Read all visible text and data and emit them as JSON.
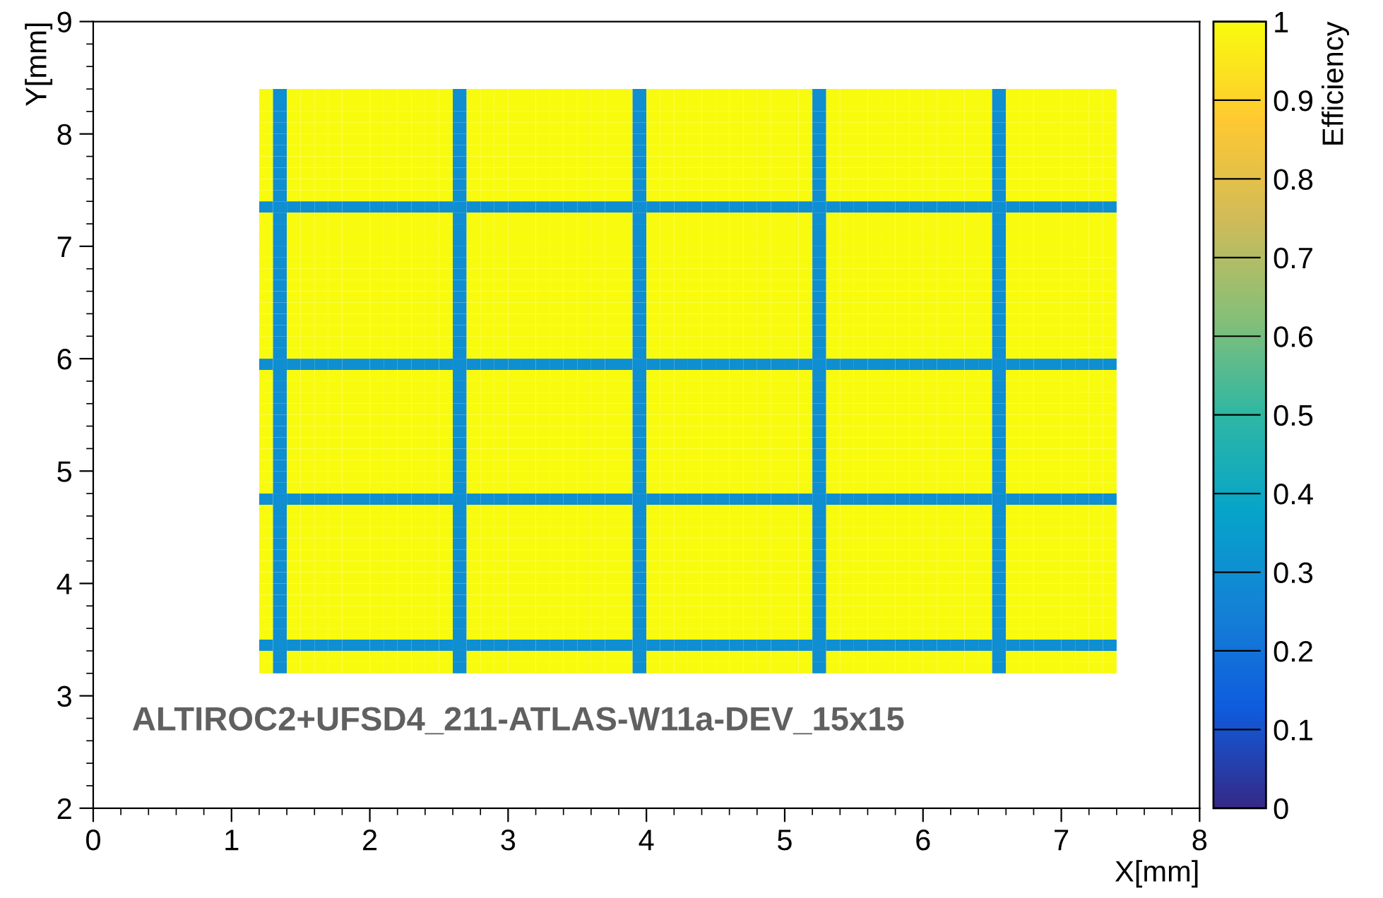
{
  "chart_data": {
    "type": "heatmap",
    "x": [
      1.25,
      1.35,
      1.45,
      1.55,
      1.65,
      1.75,
      1.85,
      1.95,
      2.05,
      2.15,
      2.25,
      2.35,
      2.45,
      2.55,
      2.65,
      2.75,
      2.85,
      2.95,
      3.05,
      3.15,
      3.25,
      3.35,
      3.45,
      3.55,
      3.65,
      3.75,
      3.85,
      3.95,
      4.05,
      4.15,
      4.25,
      4.35,
      4.45,
      4.55,
      4.65,
      4.75,
      4.85,
      4.95,
      5.05,
      5.15,
      5.25,
      5.35,
      5.45,
      5.55,
      5.65,
      5.75,
      5.85,
      5.95,
      6.05,
      6.15,
      6.25,
      6.35,
      6.45,
      6.55,
      6.65,
      6.75,
      6.85,
      6.95,
      7.05,
      7.15,
      7.25,
      7.35
    ],
    "y": [
      8.35,
      8.25,
      8.15,
      8.05,
      7.95,
      7.85,
      7.75,
      7.65,
      7.55,
      7.45,
      7.35,
      7.25,
      7.15,
      7.05,
      6.95,
      6.85,
      6.75,
      6.65,
      6.55,
      6.45,
      6.35,
      6.25,
      6.15,
      6.05,
      5.95,
      5.85,
      5.75,
      5.65,
      5.55,
      5.45,
      5.35,
      5.25,
      5.15,
      5.05,
      4.95,
      4.85,
      4.75,
      4.65,
      4.55,
      4.45,
      4.35,
      4.25,
      4.15,
      4.05,
      3.95,
      3.85,
      3.75,
      3.65,
      3.55,
      3.45,
      3.35,
      3.25
    ],
    "cells": [
      [
        1,
        0.3,
        1,
        1,
        1,
        1,
        1,
        1,
        1,
        1,
        1,
        1,
        1,
        1,
        0.3,
        1,
        1,
        1,
        1,
        1,
        1,
        1,
        1,
        1,
        1,
        1,
        1,
        0.3,
        1,
        1,
        1,
        1,
        1,
        1,
        1,
        1,
        1,
        1,
        1,
        1,
        0.3,
        1,
        1,
        1,
        1,
        1,
        1,
        1,
        1,
        1,
        1,
        1,
        1,
        0.3,
        1,
        1,
        1,
        1,
        1,
        1,
        1,
        1
      ],
      [
        1,
        0.3,
        1,
        1,
        1,
        1,
        1,
        1,
        1,
        1,
        1,
        1,
        1,
        1,
        0.3,
        1,
        1,
        1,
        1,
        1,
        1,
        1,
        1,
        1,
        1,
        1,
        1,
        0.3,
        1,
        1,
        1,
        1,
        1,
        1,
        1,
        1,
        1,
        1,
        1,
        1,
        0.3,
        1,
        1,
        1,
        1,
        1,
        1,
        1,
        1,
        1,
        1,
        1,
        1,
        0.3,
        1,
        1,
        1,
        1,
        1,
        1,
        1,
        1
      ],
      [
        1,
        0.3,
        1,
        1,
        1,
        1,
        1,
        1,
        1,
        1,
        1,
        1,
        1,
        1,
        0.3,
        1,
        1,
        1,
        1,
        1,
        1,
        1,
        1,
        1,
        1,
        1,
        1,
        0.3,
        1,
        1,
        1,
        1,
        1,
        1,
        1,
        1,
        1,
        1,
        1,
        1,
        0.3,
        1,
        1,
        1,
        1,
        1,
        1,
        1,
        1,
        1,
        1,
        1,
        1,
        0.3,
        1,
        1,
        1,
        1,
        1,
        1,
        1,
        1
      ],
      [
        1,
        0.3,
        1,
        1,
        1,
        1,
        1,
        1,
        1,
        1,
        1,
        1,
        1,
        1,
        0.3,
        1,
        1,
        1,
        1,
        1,
        1,
        1,
        1,
        1,
        1,
        1,
        1,
        0.3,
        1,
        1,
        1,
        1,
        1,
        1,
        1,
        1,
        1,
        1,
        1,
        1,
        0.3,
        1,
        1,
        1,
        1,
        1,
        1,
        1,
        1,
        1,
        1,
        1,
        1,
        0.3,
        1,
        1,
        1,
        1,
        1,
        1,
        1,
        1
      ],
      [
        1,
        0.3,
        1,
        1,
        1,
        1,
        1,
        1,
        1,
        1,
        1,
        1,
        1,
        1,
        0.3,
        1,
        1,
        1,
        1,
        1,
        1,
        1,
        1,
        1,
        1,
        1,
        1,
        0.3,
        1,
        1,
        1,
        1,
        1,
        1,
        1,
        1,
        1,
        1,
        1,
        1,
        0.3,
        1,
        1,
        1,
        1,
        1,
        1,
        1,
        1,
        1,
        1,
        1,
        1,
        0.3,
        1,
        1,
        1,
        1,
        1,
        1,
        1,
        1
      ],
      [
        1,
        0.3,
        1,
        1,
        1,
        1,
        1,
        1,
        1,
        1,
        1,
        1,
        1,
        1,
        0.3,
        1,
        1,
        1,
        1,
        1,
        1,
        1,
        1,
        1,
        1,
        1,
        1,
        0.3,
        1,
        1,
        1,
        1,
        1,
        1,
        1,
        1,
        1,
        1,
        1,
        1,
        0.3,
        1,
        1,
        1,
        1,
        1,
        1,
        1,
        1,
        1,
        1,
        1,
        1,
        0.3,
        1,
        1,
        1,
        1,
        1,
        1,
        1,
        1
      ],
      [
        1,
        0.3,
        1,
        1,
        1,
        1,
        1,
        1,
        1,
        1,
        1,
        1,
        1,
        1,
        0.3,
        1,
        1,
        1,
        1,
        1,
        1,
        1,
        1,
        1,
        1,
        1,
        1,
        0.3,
        1,
        1,
        1,
        1,
        1,
        1,
        1,
        1,
        1,
        1,
        1,
        1,
        0.3,
        1,
        1,
        1,
        1,
        1,
        1,
        1,
        1,
        1,
        1,
        1,
        1,
        0.3,
        1,
        1,
        1,
        1,
        1,
        1,
        1,
        1
      ],
      [
        1,
        0.3,
        1,
        1,
        1,
        1,
        1,
        1,
        1,
        1,
        1,
        1,
        1,
        1,
        0.3,
        1,
        1,
        1,
        1,
        1,
        1,
        1,
        1,
        1,
        1,
        1,
        1,
        0.3,
        1,
        1,
        1,
        1,
        1,
        1,
        1,
        1,
        1,
        1,
        1,
        1,
        0.3,
        1,
        1,
        1,
        1,
        1,
        1,
        1,
        1,
        1,
        1,
        1,
        1,
        0.3,
        1,
        1,
        1,
        1,
        1,
        1,
        1,
        1
      ],
      [
        1,
        0.3,
        1,
        1,
        1,
        1,
        1,
        1,
        1,
        1,
        1,
        1,
        1,
        1,
        0.3,
        1,
        1,
        1,
        1,
        1,
        1,
        1,
        1,
        1,
        1,
        1,
        1,
        0.3,
        1,
        1,
        1,
        1,
        1,
        1,
        1,
        1,
        1,
        1,
        1,
        1,
        0.3,
        1,
        1,
        1,
        1,
        1,
        1,
        1,
        1,
        1,
        1,
        1,
        1,
        0.3,
        1,
        1,
        1,
        1,
        1,
        1,
        1,
        1
      ],
      [
        1,
        0.3,
        1,
        1,
        1,
        1,
        1,
        1,
        1,
        1,
        1,
        1,
        1,
        1,
        0.3,
        1,
        1,
        1,
        1,
        1,
        1,
        1,
        1,
        1,
        1,
        1,
        1,
        0.3,
        1,
        1,
        1,
        1,
        1,
        1,
        1,
        1,
        1,
        1,
        1,
        1,
        0.3,
        1,
        1,
        1,
        1,
        1,
        1,
        1,
        1,
        1,
        1,
        1,
        1,
        0.3,
        1,
        1,
        1,
        1,
        1,
        1,
        1,
        1
      ],
      [
        0.3,
        0.3,
        0.3,
        0.3,
        0.3,
        0.3,
        0.3,
        0.3,
        0.3,
        0.3,
        0.3,
        0.3,
        0.3,
        0.3,
        0.3,
        0.3,
        0.3,
        0.3,
        0.3,
        0.3,
        0.3,
        0.3,
        0.3,
        0.3,
        0.3,
        0.3,
        0.3,
        0.3,
        0.3,
        0.3,
        0.3,
        0.3,
        0.3,
        0.3,
        0.3,
        0.3,
        0.3,
        0.3,
        0.3,
        0.3,
        0.3,
        0.3,
        0.3,
        0.3,
        0.3,
        0.3,
        0.3,
        0.3,
        0.3,
        0.3,
        0.3,
        0.3,
        0.3,
        0.3,
        0.3,
        0.3,
        0.3,
        0.3,
        0.3,
        0.3,
        0.3,
        0.3
      ],
      [
        1,
        0.3,
        1,
        1,
        1,
        1,
        1,
        1,
        1,
        1,
        1,
        1,
        1,
        1,
        0.3,
        1,
        1,
        1,
        1,
        1,
        1,
        1,
        1,
        1,
        1,
        1,
        1,
        0.3,
        1,
        1,
        1,
        1,
        1,
        1,
        1,
        1,
        1,
        1,
        1,
        1,
        0.3,
        1,
        1,
        1,
        1,
        1,
        1,
        1,
        1,
        1,
        1,
        1,
        1,
        0.3,
        1,
        1,
        1,
        1,
        1,
        1,
        1,
        1
      ],
      [
        1,
        0.3,
        1,
        1,
        1,
        1,
        1,
        1,
        1,
        1,
        1,
        1,
        1,
        1,
        0.3,
        1,
        1,
        1,
        1,
        1,
        1,
        1,
        1,
        1,
        1,
        1,
        1,
        0.3,
        1,
        1,
        1,
        1,
        1,
        1,
        1,
        1,
        1,
        1,
        1,
        1,
        0.3,
        1,
        1,
        1,
        1,
        1,
        1,
        1,
        1,
        1,
        1,
        1,
        1,
        0.3,
        1,
        1,
        1,
        1,
        1,
        1,
        1,
        1
      ],
      [
        1,
        0.3,
        1,
        1,
        1,
        1,
        1,
        1,
        1,
        1,
        1,
        1,
        1,
        1,
        0.3,
        1,
        1,
        1,
        1,
        1,
        1,
        1,
        1,
        1,
        1,
        1,
        1,
        0.3,
        1,
        1,
        1,
        1,
        1,
        1,
        1,
        1,
        1,
        1,
        1,
        1,
        0.3,
        1,
        1,
        1,
        1,
        1,
        1,
        1,
        1,
        1,
        1,
        1,
        1,
        0.3,
        1,
        1,
        1,
        1,
        1,
        1,
        1,
        1
      ],
      [
        1,
        0.3,
        1,
        1,
        1,
        1,
        1,
        1,
        1,
        1,
        1,
        1,
        1,
        1,
        0.3,
        1,
        1,
        1,
        1,
        1,
        1,
        1,
        1,
        1,
        1,
        1,
        1,
        0.3,
        1,
        1,
        1,
        1,
        1,
        1,
        1,
        1,
        1,
        1,
        1,
        1,
        0.3,
        1,
        1,
        1,
        1,
        1,
        1,
        1,
        1,
        1,
        1,
        1,
        1,
        0.3,
        1,
        1,
        1,
        1,
        1,
        1,
        1,
        1
      ],
      [
        1,
        0.3,
        1,
        1,
        1,
        1,
        1,
        1,
        1,
        1,
        1,
        1,
        1,
        1,
        0.3,
        1,
        1,
        1,
        1,
        1,
        1,
        1,
        1,
        1,
        1,
        1,
        1,
        0.3,
        1,
        1,
        1,
        1,
        1,
        1,
        1,
        1,
        1,
        1,
        1,
        1,
        0.3,
        1,
        1,
        1,
        1,
        1,
        1,
        1,
        1,
        1,
        1,
        1,
        1,
        0.3,
        1,
        1,
        1,
        1,
        1,
        1,
        1,
        1
      ],
      [
        1,
        0.3,
        1,
        1,
        1,
        1,
        1,
        1,
        1,
        1,
        1,
        1,
        1,
        1,
        0.3,
        1,
        1,
        1,
        1,
        1,
        1,
        1,
        1,
        1,
        1,
        1,
        1,
        0.3,
        1,
        1,
        1,
        1,
        1,
        1,
        1,
        1,
        1,
        1,
        1,
        1,
        0.3,
        1,
        1,
        1,
        1,
        1,
        1,
        1,
        1,
        1,
        1,
        1,
        1,
        0.3,
        1,
        1,
        1,
        1,
        1,
        1,
        1,
        1
      ],
      [
        1,
        0.3,
        1,
        1,
        1,
        1,
        1,
        1,
        1,
        1,
        1,
        1,
        1,
        1,
        0.3,
        1,
        1,
        1,
        1,
        1,
        1,
        1,
        1,
        1,
        1,
        1,
        1,
        0.3,
        1,
        1,
        1,
        1,
        1,
        1,
        1,
        1,
        1,
        1,
        1,
        1,
        0.3,
        1,
        1,
        1,
        1,
        1,
        1,
        1,
        1,
        1,
        1,
        1,
        1,
        0.3,
        1,
        1,
        1,
        1,
        1,
        1,
        1,
        1
      ],
      [
        1,
        0.3,
        1,
        1,
        1,
        1,
        1,
        1,
        1,
        1,
        1,
        1,
        1,
        1,
        0.3,
        1,
        1,
        1,
        1,
        1,
        1,
        1,
        1,
        1,
        1,
        1,
        1,
        0.3,
        1,
        1,
        1,
        1,
        1,
        1,
        1,
        1,
        1,
        1,
        1,
        1,
        0.3,
        1,
        1,
        1,
        1,
        1,
        1,
        1,
        1,
        1,
        1,
        1,
        1,
        0.3,
        1,
        1,
        1,
        1,
        1,
        1,
        1,
        1
      ],
      [
        1,
        0.3,
        1,
        1,
        1,
        1,
        1,
        1,
        1,
        1,
        1,
        1,
        1,
        1,
        0.3,
        1,
        1,
        1,
        1,
        1,
        1,
        1,
        1,
        1,
        1,
        1,
        1,
        0.3,
        1,
        1,
        1,
        1,
        1,
        1,
        1,
        1,
        1,
        1,
        1,
        1,
        0.3,
        1,
        1,
        1,
        1,
        1,
        1,
        1,
        1,
        1,
        1,
        1,
        1,
        0.3,
        1,
        1,
        1,
        1,
        1,
        1,
        1,
        1
      ],
      [
        1,
        0.3,
        1,
        1,
        1,
        1,
        1,
        1,
        1,
        1,
        1,
        1,
        1,
        1,
        0.3,
        1,
        1,
        1,
        1,
        1,
        1,
        1,
        1,
        1,
        1,
        1,
        1,
        0.3,
        1,
        1,
        1,
        1,
        1,
        1,
        1,
        1,
        1,
        1,
        1,
        1,
        0.3,
        1,
        1,
        1,
        1,
        1,
        1,
        1,
        1,
        1,
        1,
        1,
        1,
        0.3,
        1,
        1,
        1,
        1,
        1,
        1,
        1,
        1
      ],
      [
        1,
        0.3,
        1,
        1,
        1,
        1,
        1,
        1,
        1,
        1,
        1,
        1,
        1,
        1,
        0.3,
        1,
        1,
        1,
        1,
        1,
        1,
        1,
        1,
        1,
        1,
        1,
        1,
        0.3,
        1,
        1,
        1,
        1,
        1,
        1,
        1,
        1,
        1,
        1,
        1,
        1,
        0.3,
        1,
        1,
        1,
        1,
        1,
        1,
        1,
        1,
        1,
        1,
        1,
        1,
        0.3,
        1,
        1,
        1,
        1,
        1,
        1,
        1,
        1
      ],
      [
        1,
        0.3,
        1,
        1,
        1,
        1,
        1,
        1,
        1,
        1,
        1,
        1,
        1,
        1,
        0.3,
        1,
        1,
        1,
        1,
        1,
        1,
        1,
        1,
        1,
        1,
        1,
        1,
        0.3,
        1,
        1,
        1,
        1,
        1,
        1,
        1,
        1,
        1,
        1,
        1,
        1,
        0.3,
        1,
        1,
        1,
        1,
        1,
        1,
        1,
        1,
        1,
        1,
        1,
        1,
        0.3,
        1,
        1,
        1,
        1,
        1,
        1,
        1,
        1
      ],
      [
        1,
        0.3,
        1,
        1,
        1,
        1,
        1,
        1,
        1,
        1,
        1,
        1,
        1,
        1,
        0.3,
        1,
        1,
        1,
        1,
        1,
        1,
        1,
        1,
        1,
        1,
        1,
        1,
        0.3,
        1,
        1,
        1,
        1,
        1,
        1,
        1,
        1,
        1,
        1,
        1,
        1,
        0.3,
        1,
        1,
        1,
        1,
        1,
        1,
        1,
        1,
        1,
        1,
        1,
        1,
        0.3,
        1,
        1,
        1,
        1,
        1,
        1,
        1,
        1
      ],
      [
        0.3,
        0.3,
        0.3,
        0.3,
        0.3,
        0.3,
        0.3,
        0.3,
        0.3,
        0.3,
        0.3,
        0.3,
        0.3,
        0.3,
        0.3,
        0.3,
        0.3,
        0.3,
        0.3,
        0.3,
        0.3,
        0.3,
        0.3,
        0.3,
        0.3,
        0.3,
        0.3,
        0.3,
        0.3,
        0.3,
        0.3,
        0.3,
        0.3,
        0.3,
        0.3,
        0.3,
        0.3,
        0.3,
        0.3,
        0.3,
        0.3,
        0.3,
        0.3,
        0.3,
        0.3,
        0.3,
        0.3,
        0.3,
        0.3,
        0.3,
        0.3,
        0.3,
        0.3,
        0.3,
        0.3,
        0.3,
        0.3,
        0.3,
        0.3,
        0.3,
        0.3,
        0.3
      ],
      [
        1,
        0.3,
        1,
        1,
        1,
        1,
        1,
        1,
        1,
        1,
        1,
        1,
        1,
        1,
        0.3,
        1,
        1,
        1,
        1,
        1,
        1,
        1,
        1,
        1,
        1,
        1,
        1,
        0.3,
        1,
        1,
        1,
        1,
        1,
        1,
        1,
        1,
        1,
        1,
        1,
        1,
        0.3,
        1,
        1,
        1,
        1,
        1,
        1,
        1,
        1,
        1,
        1,
        1,
        1,
        0.3,
        1,
        1,
        1,
        1,
        1,
        1,
        1,
        1
      ],
      [
        1,
        0.3,
        1,
        1,
        1,
        1,
        1,
        1,
        1,
        1,
        1,
        1,
        1,
        1,
        0.3,
        1,
        1,
        1,
        1,
        1,
        1,
        1,
        1,
        1,
        1,
        1,
        1,
        0.3,
        1,
        1,
        1,
        1,
        1,
        1,
        1,
        1,
        1,
        1,
        1,
        1,
        0.3,
        1,
        1,
        1,
        1,
        1,
        1,
        1,
        1,
        1,
        1,
        1,
        1,
        0.3,
        1,
        1,
        1,
        1,
        1,
        1,
        1,
        1
      ],
      [
        1,
        0.3,
        1,
        1,
        1,
        1,
        1,
        1,
        1,
        1,
        1,
        1,
        1,
        1,
        0.3,
        1,
        1,
        1,
        1,
        1,
        1,
        1,
        1,
        1,
        1,
        1,
        1,
        0.3,
        1,
        1,
        1,
        1,
        1,
        1,
        1,
        1,
        1,
        1,
        1,
        1,
        0.3,
        1,
        1,
        1,
        1,
        1,
        1,
        1,
        1,
        1,
        1,
        1,
        1,
        0.3,
        1,
        1,
        1,
        1,
        1,
        1,
        1,
        1
      ],
      [
        1,
        0.3,
        1,
        1,
        1,
        1,
        1,
        1,
        1,
        1,
        1,
        1,
        1,
        1,
        0.3,
        1,
        1,
        1,
        1,
        1,
        1,
        1,
        1,
        1,
        1,
        1,
        1,
        0.3,
        1,
        1,
        1,
        1,
        1,
        1,
        1,
        1,
        1,
        1,
        1,
        1,
        0.3,
        1,
        1,
        1,
        1,
        1,
        1,
        1,
        1,
        1,
        1,
        1,
        1,
        0.3,
        1,
        1,
        1,
        1,
        1,
        1,
        1,
        1
      ],
      [
        1,
        0.3,
        1,
        1,
        1,
        1,
        1,
        1,
        1,
        1,
        1,
        1,
        1,
        1,
        0.3,
        1,
        1,
        1,
        1,
        1,
        1,
        1,
        1,
        1,
        1,
        1,
        1,
        0.3,
        1,
        1,
        1,
        1,
        1,
        1,
        1,
        1,
        1,
        1,
        1,
        1,
        0.3,
        1,
        1,
        1,
        1,
        1,
        1,
        1,
        1,
        1,
        1,
        1,
        1,
        0.3,
        1,
        1,
        1,
        1,
        1,
        1,
        1,
        1
      ],
      [
        1,
        0.3,
        1,
        1,
        1,
        1,
        1,
        1,
        1,
        1,
        1,
        1,
        1,
        1,
        0.3,
        1,
        1,
        1,
        1,
        1,
        1,
        1,
        1,
        1,
        1,
        1,
        1,
        0.3,
        1,
        1,
        1,
        1,
        1,
        1,
        1,
        1,
        1,
        1,
        1,
        1,
        0.3,
        1,
        1,
        1,
        1,
        1,
        1,
        1,
        1,
        1,
        1,
        1,
        1,
        0.3,
        1,
        1,
        1,
        1,
        1,
        1,
        1,
        1
      ],
      [
        1,
        0.3,
        1,
        1,
        1,
        1,
        1,
        1,
        1,
        1,
        1,
        1,
        1,
        1,
        0.3,
        1,
        1,
        1,
        1,
        1,
        1,
        1,
        1,
        1,
        1,
        1,
        1,
        0.3,
        1,
        1,
        1,
        1,
        1,
        1,
        1,
        1,
        1,
        1,
        1,
        1,
        0.3,
        1,
        1,
        1,
        1,
        1,
        1,
        1,
        1,
        1,
        1,
        1,
        1,
        0.3,
        1,
        1,
        1,
        1,
        1,
        1,
        1,
        1
      ],
      [
        1,
        0.3,
        1,
        1,
        1,
        1,
        1,
        1,
        1,
        1,
        1,
        1,
        1,
        1,
        0.3,
        1,
        1,
        1,
        1,
        1,
        1,
        1,
        1,
        1,
        1,
        1,
        1,
        0.3,
        1,
        1,
        1,
        1,
        1,
        1,
        1,
        1,
        1,
        1,
        1,
        1,
        0.3,
        1,
        1,
        1,
        1,
        1,
        1,
        1,
        1,
        1,
        1,
        1,
        1,
        0.3,
        1,
        1,
        1,
        1,
        1,
        1,
        1,
        1
      ],
      [
        1,
        0.3,
        1,
        1,
        1,
        1,
        1,
        1,
        1,
        1,
        1,
        1,
        1,
        1,
        0.3,
        1,
        1,
        1,
        1,
        1,
        1,
        1,
        1,
        1,
        1,
        1,
        1,
        0.3,
        1,
        1,
        1,
        1,
        1,
        1,
        1,
        1,
        1,
        1,
        1,
        1,
        0.3,
        1,
        1,
        1,
        1,
        1,
        1,
        1,
        1,
        1,
        1,
        1,
        1,
        0.3,
        1,
        1,
        1,
        1,
        1,
        1,
        1,
        1
      ],
      [
        1,
        0.3,
        1,
        1,
        1,
        1,
        1,
        1,
        1,
        1,
        1,
        1,
        1,
        1,
        0.3,
        1,
        1,
        1,
        1,
        1,
        1,
        1,
        1,
        1,
        1,
        1,
        1,
        0.3,
        1,
        1,
        1,
        1,
        1,
        1,
        1,
        1,
        1,
        1,
        1,
        1,
        0.3,
        1,
        1,
        1,
        1,
        1,
        1,
        1,
        1,
        1,
        1,
        1,
        1,
        0.3,
        1,
        1,
        1,
        1,
        1,
        1,
        1,
        1
      ],
      [
        1,
        0.3,
        1,
        1,
        1,
        1,
        1,
        1,
        1,
        1,
        1,
        1,
        1,
        1,
        0.3,
        1,
        1,
        1,
        1,
        1,
        1,
        1,
        1,
        1,
        1,
        1,
        1,
        0.3,
        1,
        1,
        1,
        1,
        1,
        1,
        1,
        1,
        1,
        1,
        1,
        1,
        0.3,
        1,
        1,
        1,
        1,
        1,
        1,
        1,
        1,
        1,
        1,
        1,
        1,
        0.3,
        1,
        1,
        1,
        1,
        1,
        1,
        1,
        1
      ],
      [
        0.3,
        0.3,
        0.3,
        0.3,
        0.3,
        0.3,
        0.3,
        0.3,
        0.3,
        0.3,
        0.3,
        0.3,
        0.3,
        0.3,
        0.3,
        0.3,
        0.3,
        0.3,
        0.3,
        0.3,
        0.3,
        0.3,
        0.3,
        0.3,
        0.3,
        0.3,
        0.3,
        0.3,
        0.3,
        0.3,
        0.3,
        0.3,
        0.3,
        0.3,
        0.3,
        0.3,
        0.3,
        0.3,
        0.3,
        0.3,
        0.3,
        0.3,
        0.3,
        0.3,
        0.3,
        0.3,
        0.3,
        0.3,
        0.3,
        0.3,
        0.3,
        0.3,
        0.3,
        0.3,
        0.3,
        0.3,
        0.3,
        0.3,
        0.3,
        0.3,
        0.3,
        0.3
      ],
      [
        1,
        0.3,
        1,
        1,
        1,
        1,
        1,
        1,
        1,
        1,
        1,
        1,
        1,
        1,
        0.3,
        1,
        1,
        1,
        1,
        1,
        1,
        1,
        1,
        1,
        1,
        1,
        1,
        0.3,
        1,
        1,
        1,
        1,
        1,
        1,
        1,
        1,
        1,
        1,
        1,
        1,
        0.3,
        1,
        1,
        1,
        1,
        1,
        1,
        1,
        1,
        1,
        1,
        1,
        1,
        0.3,
        1,
        1,
        1,
        1,
        1,
        1,
        1,
        1
      ],
      [
        1,
        0.3,
        1,
        1,
        1,
        1,
        1,
        1,
        1,
        1,
        1,
        1,
        1,
        1,
        0.3,
        1,
        1,
        1,
        1,
        1,
        1,
        1,
        1,
        1,
        1,
        1,
        1,
        0.3,
        1,
        1,
        1,
        1,
        1,
        1,
        1,
        1,
        1,
        1,
        1,
        1,
        0.3,
        1,
        1,
        1,
        1,
        1,
        1,
        1,
        1,
        1,
        1,
        1,
        1,
        0.3,
        1,
        1,
        1,
        1,
        1,
        1,
        1,
        1
      ],
      [
        1,
        0.3,
        1,
        1,
        1,
        1,
        1,
        1,
        1,
        1,
        1,
        1,
        1,
        1,
        0.3,
        1,
        1,
        1,
        1,
        1,
        1,
        1,
        1,
        1,
        1,
        1,
        1,
        0.3,
        1,
        1,
        1,
        1,
        1,
        1,
        1,
        1,
        1,
        1,
        1,
        1,
        0.3,
        1,
        1,
        1,
        1,
        1,
        1,
        1,
        1,
        1,
        1,
        1,
        1,
        0.3,
        1,
        1,
        1,
        1,
        1,
        1,
        1,
        1
      ],
      [
        1,
        0.3,
        1,
        1,
        1,
        1,
        1,
        1,
        1,
        1,
        1,
        1,
        1,
        1,
        0.3,
        1,
        1,
        1,
        1,
        1,
        1,
        1,
        1,
        1,
        1,
        1,
        1,
        0.3,
        1,
        1,
        1,
        1,
        1,
        1,
        1,
        1,
        1,
        1,
        1,
        1,
        0.3,
        1,
        1,
        1,
        1,
        1,
        1,
        1,
        1,
        1,
        1,
        1,
        1,
        0.3,
        1,
        1,
        1,
        1,
        1,
        1,
        1,
        1
      ],
      [
        1,
        0.3,
        1,
        1,
        1,
        1,
        1,
        1,
        1,
        1,
        1,
        1,
        1,
        1,
        0.3,
        1,
        1,
        1,
        1,
        1,
        1,
        1,
        1,
        1,
        1,
        1,
        1,
        0.3,
        1,
        1,
        1,
        1,
        1,
        1,
        1,
        1,
        1,
        1,
        1,
        1,
        0.3,
        1,
        1,
        1,
        1,
        1,
        1,
        1,
        1,
        1,
        1,
        1,
        1,
        0.3,
        1,
        1,
        1,
        1,
        1,
        1,
        1,
        1
      ],
      [
        1,
        0.3,
        1,
        1,
        1,
        1,
        1,
        1,
        1,
        1,
        1,
        1,
        1,
        1,
        0.3,
        1,
        1,
        1,
        1,
        1,
        1,
        1,
        1,
        1,
        1,
        1,
        1,
        0.3,
        1,
        1,
        1,
        1,
        1,
        1,
        1,
        1,
        1,
        1,
        1,
        1,
        0.3,
        1,
        1,
        1,
        1,
        1,
        1,
        1,
        1,
        1,
        1,
        1,
        1,
        0.3,
        1,
        1,
        1,
        1,
        1,
        1,
        1,
        1
      ],
      [
        1,
        0.3,
        1,
        1,
        1,
        1,
        1,
        1,
        1,
        1,
        1,
        1,
        1,
        1,
        0.3,
        1,
        1,
        1,
        1,
        1,
        1,
        1,
        1,
        1,
        1,
        1,
        1,
        0.3,
        1,
        1,
        1,
        1,
        1,
        1,
        1,
        1,
        1,
        1,
        1,
        1,
        0.3,
        1,
        1,
        1,
        1,
        1,
        1,
        1,
        1,
        1,
        1,
        1,
        1,
        0.3,
        1,
        1,
        1,
        1,
        1,
        1,
        1,
        1
      ],
      [
        1,
        0.3,
        1,
        1,
        1,
        1,
        1,
        1,
        1,
        1,
        1,
        1,
        1,
        1,
        0.3,
        1,
        1,
        1,
        1,
        1,
        1,
        1,
        1,
        1,
        1,
        1,
        1,
        0.3,
        1,
        1,
        1,
        1,
        1,
        1,
        1,
        1,
        1,
        1,
        1,
        1,
        0.3,
        1,
        1,
        1,
        1,
        1,
        1,
        1,
        1,
        1,
        1,
        1,
        1,
        0.3,
        1,
        1,
        1,
        1,
        1,
        1,
        1,
        1
      ],
      [
        1,
        0.3,
        1,
        1,
        1,
        1,
        1,
        1,
        1,
        1,
        1,
        1,
        1,
        1,
        0.3,
        1,
        1,
        1,
        1,
        1,
        1,
        1,
        1,
        1,
        1,
        1,
        1,
        0.3,
        1,
        1,
        1,
        1,
        1,
        1,
        1,
        1,
        1,
        1,
        1,
        1,
        0.3,
        1,
        1,
        1,
        1,
        1,
        1,
        1,
        1,
        1,
        1,
        1,
        1,
        0.3,
        1,
        1,
        1,
        1,
        1,
        1,
        1,
        1
      ],
      [
        1,
        0.3,
        1,
        1,
        1,
        1,
        1,
        1,
        1,
        1,
        1,
        1,
        1,
        1,
        0.3,
        1,
        1,
        1,
        1,
        1,
        1,
        1,
        1,
        1,
        1,
        1,
        1,
        0.3,
        1,
        1,
        1,
        1,
        1,
        1,
        1,
        1,
        1,
        1,
        1,
        1,
        0.3,
        1,
        1,
        1,
        1,
        1,
        1,
        1,
        1,
        1,
        1,
        1,
        1,
        0.3,
        1,
        1,
        1,
        1,
        1,
        1,
        1,
        1
      ],
      [
        1,
        0.3,
        1,
        1,
        1,
        1,
        1,
        1,
        1,
        1,
        1,
        1,
        1,
        1,
        0.3,
        1,
        1,
        1,
        1,
        1,
        1,
        1,
        1,
        1,
        1,
        1,
        1,
        0.3,
        1,
        1,
        1,
        1,
        1,
        1,
        1,
        1,
        1,
        1,
        1,
        1,
        0.3,
        1,
        1,
        1,
        1,
        1,
        1,
        1,
        1,
        1,
        1,
        1,
        1,
        0.3,
        1,
        1,
        1,
        1,
        1,
        1,
        1,
        1
      ],
      [
        1,
        0.3,
        1,
        1,
        1,
        1,
        1,
        1,
        1,
        1,
        1,
        1,
        1,
        1,
        0.3,
        1,
        1,
        1,
        1,
        1,
        1,
        1,
        1,
        1,
        1,
        1,
        1,
        0.3,
        1,
        1,
        1,
        1,
        1,
        1,
        1,
        1,
        1,
        1,
        1,
        1,
        0.3,
        1,
        1,
        1,
        1,
        1,
        1,
        1,
        1,
        1,
        1,
        1,
        1,
        0.3,
        1,
        1,
        1,
        1,
        1,
        1,
        1,
        1
      ],
      [
        0.3,
        0.3,
        0.3,
        0.3,
        0.3,
        0.3,
        0.3,
        0.3,
        0.3,
        0.3,
        0.3,
        0.3,
        0.3,
        0.3,
        0.3,
        0.3,
        0.3,
        0.3,
        0.3,
        0.3,
        0.3,
        0.3,
        0.3,
        0.3,
        0.3,
        0.3,
        0.3,
        0.3,
        0.3,
        0.3,
        0.3,
        0.3,
        0.3,
        0.3,
        0.3,
        0.3,
        0.3,
        0.3,
        0.3,
        0.3,
        0.3,
        0.3,
        0.3,
        0.3,
        0.3,
        0.3,
        0.3,
        0.3,
        0.3,
        0.3,
        0.3,
        0.3,
        0.3,
        0.3,
        0.3,
        0.3,
        0.3,
        0.3,
        0.3,
        0.3,
        0.3,
        0.3
      ],
      [
        1,
        0.3,
        1,
        1,
        1,
        1,
        1,
        1,
        1,
        1,
        1,
        1,
        1,
        1,
        0.3,
        1,
        1,
        1,
        1,
        1,
        1,
        1,
        1,
        1,
        1,
        1,
        1,
        0.3,
        1,
        1,
        1,
        1,
        1,
        1,
        1,
        1,
        1,
        1,
        1,
        1,
        0.3,
        1,
        1,
        1,
        1,
        1,
        1,
        1,
        1,
        1,
        1,
        1,
        1,
        0.3,
        1,
        1,
        1,
        1,
        1,
        1,
        1,
        1
      ],
      [
        1,
        0.3,
        1,
        1,
        1,
        1,
        1,
        1,
        1,
        1,
        1,
        1,
        1,
        1,
        0.3,
        1,
        1,
        1,
        1,
        1,
        1,
        1,
        1,
        1,
        1,
        1,
        1,
        0.3,
        1,
        1,
        1,
        1,
        1,
        1,
        1,
        1,
        1,
        1,
        1,
        1,
        0.3,
        1,
        1,
        1,
        1,
        1,
        1,
        1,
        1,
        1,
        1,
        1,
        1,
        0.3,
        1,
        1,
        1,
        1,
        1,
        1,
        1,
        1
      ]
    ],
    "xlim": [
      0,
      8
    ],
    "xticks": [
      0,
      1,
      2,
      3,
      4,
      5,
      6,
      7,
      8
    ],
    "ylim": [
      2,
      9
    ],
    "yticks": [
      2,
      3,
      4,
      5,
      6,
      7,
      8,
      9
    ],
    "clim": [
      0,
      1
    ],
    "cticks": [
      0,
      0.1,
      0.2,
      0.3,
      0.4,
      0.5,
      0.6,
      0.7,
      0.8,
      0.9,
      1
    ],
    "xlabel": "X[mm]",
    "ylabel": "Y[mm]",
    "clabel": "Efficiency",
    "annotations": [
      "ALTIROC2+UFSD4_211-ATLAS-W11a-DEV_15x15"
    ],
    "grid": false
  }
}
